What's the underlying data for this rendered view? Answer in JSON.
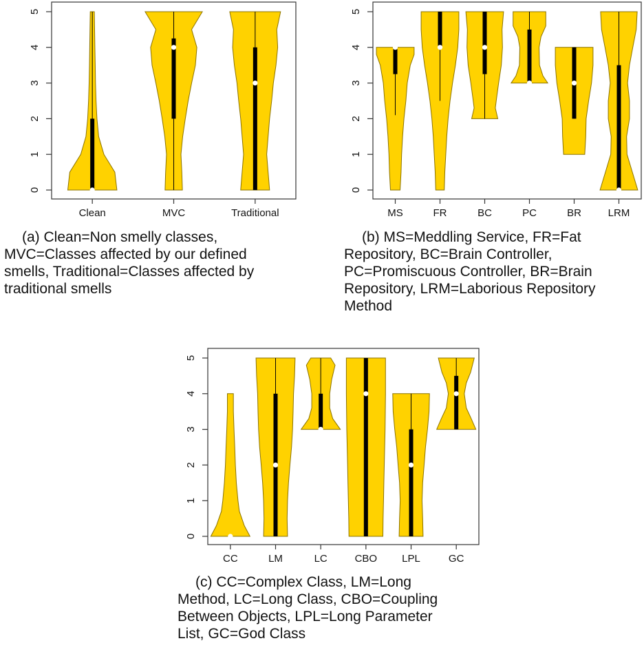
{
  "colors": {
    "violin_fill": "#FFD200",
    "violin_stroke": "#8a7200",
    "box": "#000000",
    "median": "#ffffff",
    "frame": "#333333"
  },
  "chart_data": [
    {
      "type": "violin",
      "id": "a",
      "categories": [
        "Clean",
        "MVC",
        "Traditional"
      ],
      "ylim": [
        0,
        5
      ],
      "yticks": [
        "0",
        "1",
        "2",
        "3",
        "4",
        "5"
      ],
      "grid": false,
      "series": [
        {
          "category": "Clean",
          "min": 0,
          "max": 5,
          "q1": 0,
          "median": 0,
          "q3": 2,
          "whisker": [
            0,
            5
          ],
          "density": [
            [
              0,
              0.85
            ],
            [
              0.5,
              0.78
            ],
            [
              1,
              0.4
            ],
            [
              1.5,
              0.22
            ],
            [
              2,
              0.16
            ],
            [
              2.5,
              0.13
            ],
            [
              3,
              0.11
            ],
            [
              3.5,
              0.1
            ],
            [
              4,
              0.09
            ],
            [
              4.5,
              0.08
            ],
            [
              5,
              0.07
            ]
          ]
        },
        {
          "category": "MVC",
          "min": 0,
          "max": 5,
          "q1": 2,
          "median": 4,
          "q3": 4.25,
          "whisker": [
            0,
            5
          ],
          "density": [
            [
              0,
              0.3
            ],
            [
              0.5,
              0.28
            ],
            [
              1,
              0.25
            ],
            [
              1.5,
              0.31
            ],
            [
              2,
              0.4
            ],
            [
              2.5,
              0.5
            ],
            [
              3,
              0.62
            ],
            [
              3.5,
              0.75
            ],
            [
              4,
              0.8
            ],
            [
              4.5,
              0.62
            ],
            [
              5,
              0.99
            ]
          ]
        },
        {
          "category": "Traditional",
          "min": 0,
          "max": 5,
          "q1": 0,
          "median": 3,
          "q3": 4,
          "whisker": [
            0,
            5
          ],
          "density": [
            [
              0,
              0.5
            ],
            [
              0.5,
              0.45
            ],
            [
              1,
              0.4
            ],
            [
              1.5,
              0.45
            ],
            [
              2,
              0.5
            ],
            [
              2.5,
              0.57
            ],
            [
              3,
              0.63
            ],
            [
              3.5,
              0.72
            ],
            [
              4,
              0.78
            ],
            [
              4.5,
              0.75
            ],
            [
              5,
              0.88
            ]
          ]
        }
      ]
    },
    {
      "type": "violin",
      "id": "b",
      "categories": [
        "MS",
        "FR",
        "BC",
        "PC",
        "BR",
        "LRM"
      ],
      "ylim": [
        0,
        5
      ],
      "yticks": [
        "0",
        "1",
        "2",
        "3",
        "4",
        "5"
      ],
      "grid": false,
      "series": [
        {
          "category": "MS",
          "min": 0,
          "max": 4,
          "q1": 3.25,
          "median": 4,
          "q3": 4,
          "whisker": [
            2.1,
            4
          ],
          "density": [
            [
              0,
              0.25
            ],
            [
              0.5,
              0.3
            ],
            [
              1,
              0.33
            ],
            [
              1.5,
              0.38
            ],
            [
              2,
              0.45
            ],
            [
              2.5,
              0.55
            ],
            [
              3,
              0.62
            ],
            [
              3.5,
              0.78
            ],
            [
              3.8,
              0.98
            ],
            [
              4,
              0.98
            ]
          ]
        },
        {
          "category": "FR",
          "min": 0,
          "max": 5,
          "q1": 4,
          "median": 4,
          "q3": 5,
          "whisker": [
            2.5,
            5
          ],
          "density": [
            [
              0,
              0.22
            ],
            [
              0.5,
              0.25
            ],
            [
              1,
              0.3
            ],
            [
              1.5,
              0.35
            ],
            [
              2,
              0.42
            ],
            [
              2.5,
              0.52
            ],
            [
              3,
              0.65
            ],
            [
              3.5,
              0.8
            ],
            [
              4,
              0.92
            ],
            [
              4.5,
              0.98
            ],
            [
              5,
              0.98
            ]
          ]
        },
        {
          "category": "BC",
          "min": 2,
          "max": 5,
          "q1": 3.25,
          "median": 4,
          "q3": 5,
          "whisker": [
            2,
            5
          ],
          "density": [
            [
              2,
              0.68
            ],
            [
              2.3,
              0.55
            ],
            [
              2.6,
              0.62
            ],
            [
              3,
              0.72
            ],
            [
              3.5,
              0.86
            ],
            [
              4,
              0.92
            ],
            [
              4.5,
              0.9
            ],
            [
              5,
              0.98
            ]
          ]
        },
        {
          "category": "PC",
          "min": 3,
          "max": 5,
          "q1": 3,
          "median": 3,
          "q3": 4.5,
          "whisker": [
            3,
            5
          ],
          "density": [
            [
              3,
              0.95
            ],
            [
              3.2,
              0.7
            ],
            [
              3.5,
              0.52
            ],
            [
              4,
              0.5
            ],
            [
              4.3,
              0.6
            ],
            [
              4.6,
              0.85
            ],
            [
              5,
              0.85
            ]
          ]
        },
        {
          "category": "BR",
          "min": 1,
          "max": 4,
          "q1": 2,
          "median": 3,
          "q3": 4,
          "whisker": [
            2,
            4
          ],
          "density": [
            [
              1,
              0.55
            ],
            [
              1.5,
              0.6
            ],
            [
              2,
              0.62
            ],
            [
              2.5,
              0.75
            ],
            [
              3,
              0.9
            ],
            [
              3.5,
              0.98
            ],
            [
              4,
              0.98
            ]
          ]
        },
        {
          "category": "LRM",
          "min": 0,
          "max": 5,
          "q1": 0,
          "median": 0,
          "q3": 3.5,
          "whisker": [
            0,
            5
          ],
          "density": [
            [
              0,
              0.98
            ],
            [
              0.5,
              0.7
            ],
            [
              1,
              0.42
            ],
            [
              1.5,
              0.4
            ],
            [
              2,
              0.55
            ],
            [
              2.5,
              0.55
            ],
            [
              3,
              0.45
            ],
            [
              3.5,
              0.55
            ],
            [
              4,
              0.72
            ],
            [
              4.5,
              0.9
            ],
            [
              5,
              0.95
            ]
          ]
        }
      ]
    },
    {
      "type": "violin",
      "id": "c",
      "categories": [
        "CC",
        "LM",
        "LC",
        "CBO",
        "LPL",
        "GC"
      ],
      "ylim": [
        0,
        5
      ],
      "yticks": [
        "0",
        "1",
        "2",
        "3",
        "4",
        "5"
      ],
      "grid": false,
      "series": [
        {
          "category": "CC",
          "min": 0,
          "max": 4,
          "q1": 0,
          "median": 0,
          "q3": 0,
          "whisker": [
            0,
            0
          ],
          "density": [
            [
              0,
              0.98
            ],
            [
              0.3,
              0.7
            ],
            [
              0.7,
              0.45
            ],
            [
              1,
              0.38
            ],
            [
              1.5,
              0.3
            ],
            [
              2,
              0.25
            ],
            [
              2.5,
              0.22
            ],
            [
              3,
              0.18
            ],
            [
              3.5,
              0.15
            ],
            [
              4,
              0.15
            ]
          ]
        },
        {
          "category": "LM",
          "min": 0,
          "max": 5,
          "q1": 0,
          "median": 2,
          "q3": 4,
          "whisker": [
            0,
            5
          ],
          "density": [
            [
              0,
              0.6
            ],
            [
              0.5,
              0.58
            ],
            [
              1,
              0.6
            ],
            [
              1.5,
              0.65
            ],
            [
              2,
              0.72
            ],
            [
              2.5,
              0.8
            ],
            [
              3,
              0.85
            ],
            [
              3.5,
              0.88
            ],
            [
              4,
              0.9
            ],
            [
              4.5,
              0.95
            ],
            [
              5,
              0.98
            ]
          ]
        },
        {
          "category": "LC",
          "min": 3,
          "max": 5,
          "q1": 3,
          "median": 3,
          "q3": 4,
          "whisker": [
            3,
            5
          ],
          "density": [
            [
              3,
              0.98
            ],
            [
              3.3,
              0.6
            ],
            [
              3.6,
              0.45
            ],
            [
              4,
              0.45
            ],
            [
              4.4,
              0.55
            ],
            [
              4.8,
              0.72
            ],
            [
              5,
              0.5
            ]
          ]
        },
        {
          "category": "CBO",
          "min": 0,
          "max": 5,
          "q1": 0,
          "median": 4,
          "q3": 5,
          "whisker": [
            0,
            5
          ],
          "density": [
            [
              0,
              0.85
            ],
            [
              0.5,
              0.86
            ],
            [
              1,
              0.88
            ],
            [
              1.5,
              0.9
            ],
            [
              2,
              0.92
            ],
            [
              2.5,
              0.94
            ],
            [
              3,
              0.96
            ],
            [
              3.5,
              0.97
            ],
            [
              4,
              0.98
            ],
            [
              4.5,
              0.98
            ],
            [
              5,
              0.98
            ]
          ]
        },
        {
          "category": "LPL",
          "min": 0,
          "max": 4,
          "q1": 0,
          "median": 2,
          "q3": 3,
          "whisker": [
            0,
            4
          ],
          "density": [
            [
              0,
              0.6
            ],
            [
              0.5,
              0.58
            ],
            [
              1,
              0.55
            ],
            [
              1.5,
              0.58
            ],
            [
              2,
              0.65
            ],
            [
              2.5,
              0.72
            ],
            [
              3,
              0.82
            ],
            [
              3.5,
              0.9
            ],
            [
              4,
              0.92
            ]
          ]
        },
        {
          "category": "GC",
          "min": 3,
          "max": 5,
          "q1": 3,
          "median": 4,
          "q3": 4.5,
          "whisker": [
            3,
            5
          ],
          "density": [
            [
              3,
              0.98
            ],
            [
              3.3,
              0.75
            ],
            [
              3.6,
              0.5
            ],
            [
              4,
              0.4
            ],
            [
              4.3,
              0.5
            ],
            [
              4.6,
              0.72
            ],
            [
              5,
              0.9
            ]
          ]
        }
      ]
    }
  ],
  "captions": {
    "a": [
      "(a) Clean=Non smelly classes,",
      "MVC=Classes affected by our defined",
      "smells, Traditional=Classes affected by",
      "traditional smells"
    ],
    "b": [
      "(b) MS=Meddling Service, FR=Fat",
      "Repository, BC=Brain Controller,",
      "PC=Promiscuous Controller, BR=Brain",
      "Repository, LRM=Laborious Repository",
      "Method"
    ],
    "c": [
      "(c) CC=Complex Class, LM=Long",
      "Method, LC=Long Class, CBO=Coupling",
      "Between Objects, LPL=Long Parameter",
      "List, GC=God Class"
    ]
  }
}
